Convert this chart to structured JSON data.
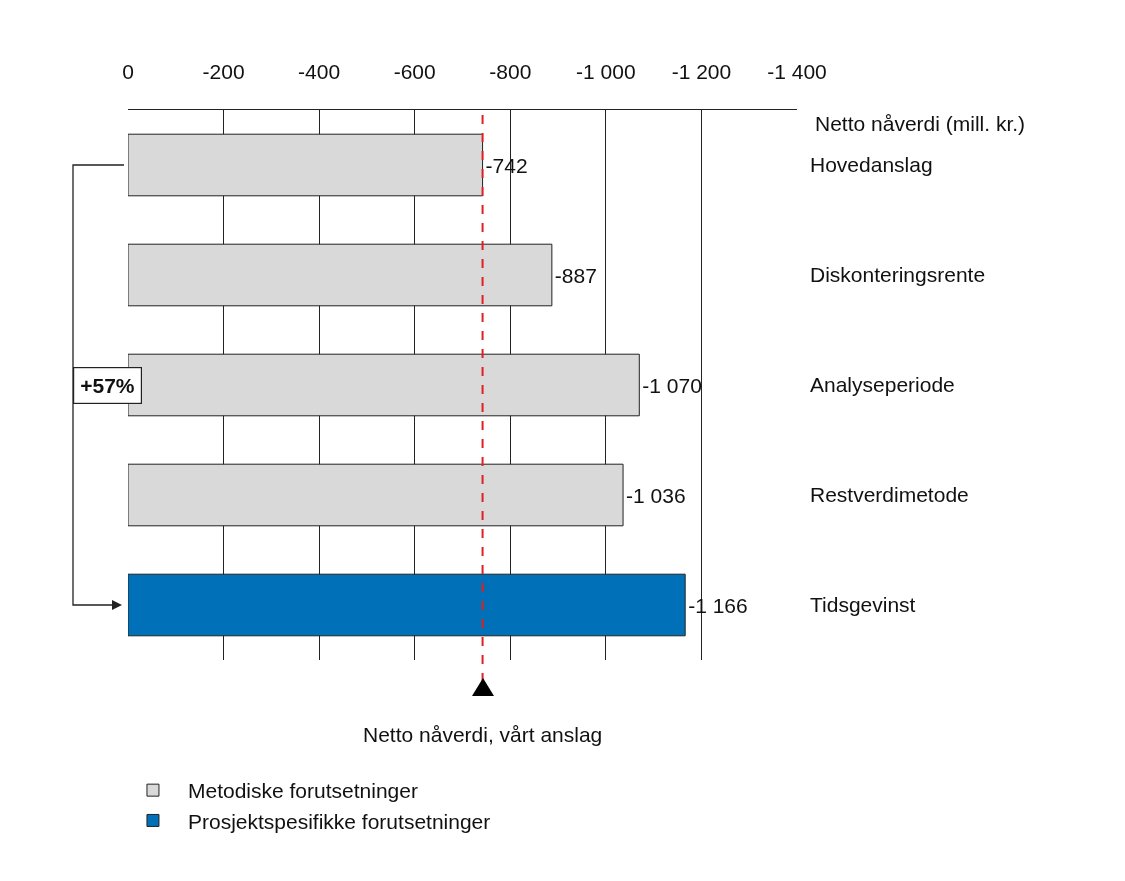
{
  "chart_data": {
    "type": "bar",
    "orientation": "horizontal",
    "xlabel": "Netto nåverdi (mill. kr.)",
    "categories": [
      "Hovedanslag",
      "Diskonteringsrente",
      "Analyseperiode",
      "Restverdimetode",
      "Tidsgevinst"
    ],
    "series": [
      {
        "name": "Metodiske forutsetninger",
        "color": "#d9d9d9",
        "values": [
          -742,
          -887,
          -1070,
          -1036,
          null
        ],
        "value_labels": [
          "-742",
          "-887",
          "-1 070",
          "-1 036",
          null
        ]
      },
      {
        "name": "Prosjektspesifikke forutsetninger",
        "color": "#0070b8",
        "values": [
          null,
          null,
          null,
          null,
          -1166
        ],
        "value_labels": [
          null,
          null,
          null,
          null,
          "-1 166"
        ]
      }
    ],
    "xlim": [
      0,
      -1400
    ],
    "xticks": [
      0,
      -200,
      -400,
      -600,
      -800,
      {
        "value": -1000,
        "label": "-1 000"
      },
      {
        "value": -1200,
        "label": "-1 200"
      },
      {
        "value": -1400,
        "label": "-1 400"
      }
    ],
    "grid": "x",
    "legend": "bottom left",
    "ref_lines": [
      {
        "axis": "x",
        "value": -742,
        "label": "Netto nåverdi, vårt anslag",
        "color": "#e02020",
        "line_style": "dashed"
      }
    ],
    "annotations": [
      "+57%"
    ]
  }
}
